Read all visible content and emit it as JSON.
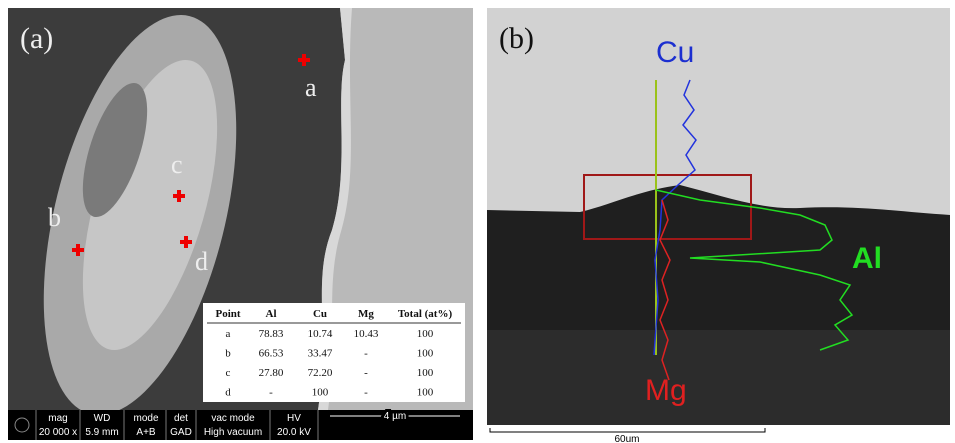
{
  "panel_a": {
    "label": "(a)",
    "points": [
      "a",
      "b",
      "c",
      "d"
    ],
    "table": {
      "header": [
        "Point",
        "Al",
        "Cu",
        "Mg",
        "Total (at%)"
      ],
      "rows": [
        [
          "a",
          "78.83",
          "10.74",
          "10.43",
          "100"
        ],
        [
          "b",
          "66.53",
          "33.47",
          "-",
          "100"
        ],
        [
          "c",
          "27.80",
          "72.20",
          "-",
          "100"
        ],
        [
          "d",
          "-",
          "100",
          "-",
          "100"
        ]
      ]
    },
    "info_bar": {
      "fields": [
        {
          "name": "mag",
          "value": "20 000 x"
        },
        {
          "name": "WD",
          "value": "5.9 mm"
        },
        {
          "name": "mode",
          "value": "A+B"
        },
        {
          "name": "det",
          "value": "GAD"
        },
        {
          "name": "vac mode",
          "value": "High vacuum"
        },
        {
          "name": "HV",
          "value": "20.0 kV"
        }
      ],
      "scale": "4 µm"
    }
  },
  "panel_b": {
    "label": "(b)",
    "elements": [
      "Cu",
      "Al",
      "Mg"
    ],
    "scale": "60um"
  }
}
